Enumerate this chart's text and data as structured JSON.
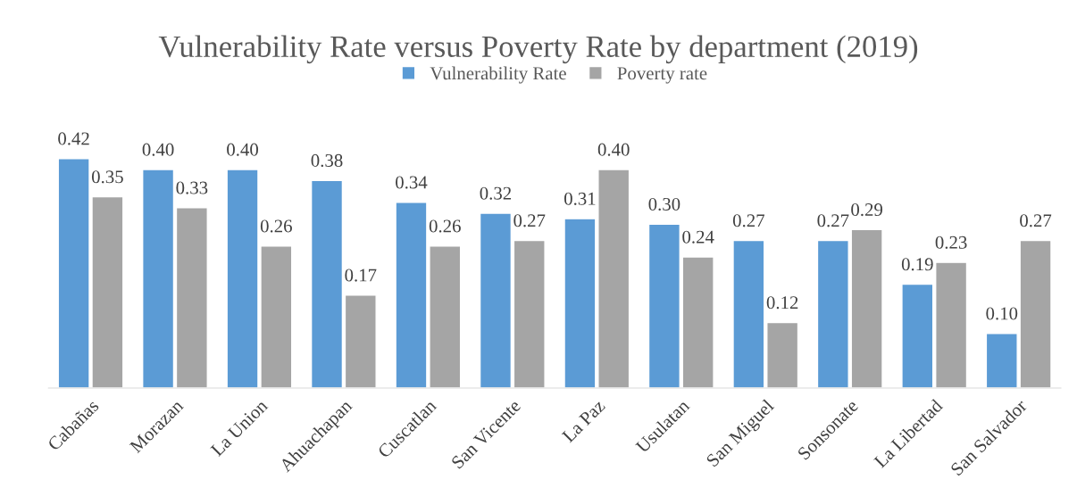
{
  "chart_data": {
    "type": "bar",
    "title": "Vulnerability Rate versus Poverty Rate by department (2019)",
    "categories": [
      "Cabañas",
      "Morazan",
      "La Union",
      "Ahuachapan",
      "Cuscatlan",
      "San Vicente",
      "La Paz",
      "Usulatan",
      "San Miguel",
      "Sonsonate",
      "La Libertad",
      "San Salvador"
    ],
    "series": [
      {
        "name": "Vulnerability Rate",
        "color": "#5b9bd5",
        "values": [
          0.42,
          0.4,
          0.4,
          0.38,
          0.34,
          0.32,
          0.31,
          0.3,
          0.27,
          0.27,
          0.19,
          0.1
        ],
        "value_labels": [
          "0.42",
          "0.40",
          "0.40",
          "0.38",
          "0.34",
          "0.32",
          "0.31",
          "0.30",
          "0.27",
          "0.27",
          "0.19",
          "0.10"
        ]
      },
      {
        "name": "Poverty rate",
        "color": "#a5a5a5",
        "values": [
          0.35,
          0.33,
          0.26,
          0.17,
          0.26,
          0.27,
          0.4,
          0.24,
          0.12,
          0.29,
          0.23,
          0.27
        ],
        "value_labels": [
          "0.35",
          "0.33",
          "0.26",
          "0.17",
          "0.26",
          "0.27",
          "0.40",
          "0.24",
          "0.12",
          "0.29",
          "0.23",
          "0.27"
        ]
      }
    ],
    "legend": "top",
    "grid": false
  }
}
